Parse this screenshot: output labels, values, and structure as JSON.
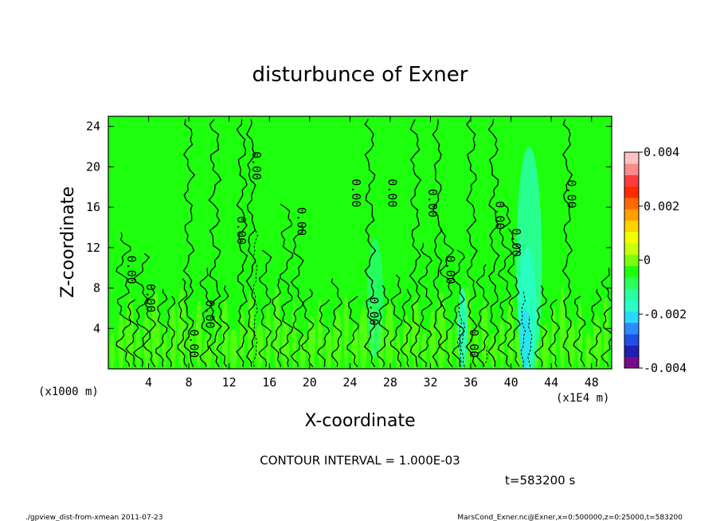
{
  "chart_data": {
    "type": "heatmap",
    "title": "disturbunce of Exner",
    "xlabel": "X-coordinate",
    "ylabel": "Z-coordinate",
    "x_unit": "(x1E4 m)",
    "y_unit": "(x1000 m)",
    "x_ticks": [
      "4",
      "8",
      "12",
      "16",
      "20",
      "24",
      "28",
      "32",
      "36",
      "40",
      "44",
      "48"
    ],
    "y_ticks": [
      "4",
      "8",
      "12",
      "16",
      "20",
      "24"
    ],
    "xlim": [
      0,
      50
    ],
    "ylim": [
      0,
      25
    ],
    "colorbar": {
      "ticks": [
        "0.004",
        "0.002",
        "0",
        "-0.002",
        "-0.004"
      ],
      "range": [
        -0.004,
        0.004
      ],
      "colors": [
        "#7a0a8c",
        "#1f1fb0",
        "#1f4fe8",
        "#2a8bff",
        "#2ad8ff",
        "#2affc8",
        "#2affa0",
        "#2aff5a",
        "#1eff0e",
        "#7cff0e",
        "#c8ff0e",
        "#f2ff00",
        "#ffd200",
        "#ffa000",
        "#ff6a00",
        "#ff2a00",
        "#ff3c3c",
        "#ff8a8a",
        "#ffc0c0"
      ]
    },
    "contour_label": "0.00",
    "contour_interval": "CONTOUR INTERVAL = 1.000E-03",
    "time": "t=583200 s",
    "background_color": "#1eff0e"
  },
  "footer": {
    "left": "./gpview_dist-from-xmean  2011-07-23",
    "right": "MarsCond_Exner.nc@Exner,x=0:500000,z=0:25000,t=583200"
  }
}
